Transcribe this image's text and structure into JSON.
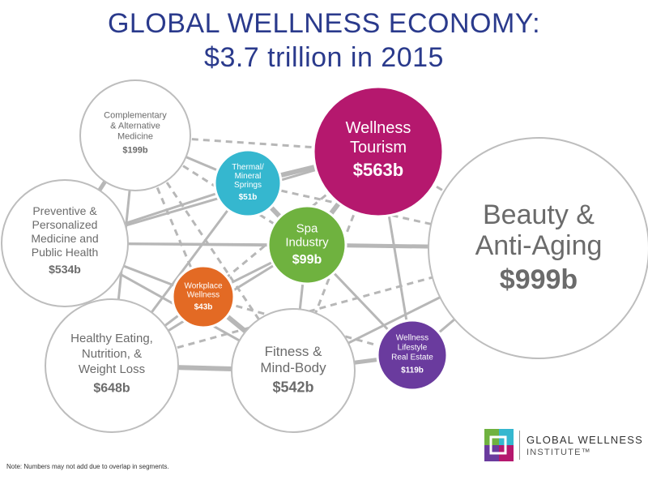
{
  "title": {
    "line1": "GLOBAL WELLNESS ECONOMY:",
    "line2": "$3.7 trillion in 2015"
  },
  "nodes": {
    "cam": {
      "lines": [
        "Complementary",
        "& Alternative",
        "Medicine"
      ],
      "value": "$199b"
    },
    "thermal": {
      "lines": [
        "Thermal/",
        "Mineral",
        "Springs"
      ],
      "value": "$51b"
    },
    "tourism": {
      "lines": [
        "Wellness",
        "Tourism"
      ],
      "value": "$563b"
    },
    "preventive": {
      "lines": [
        "Preventive &",
        "Personalized",
        "Medicine and",
        "Public Health"
      ],
      "value": "$534b"
    },
    "spa": {
      "lines": [
        "Spa",
        "Industry"
      ],
      "value": "$99b"
    },
    "beauty": {
      "lines": [
        "Beauty &",
        "Anti-Aging"
      ],
      "value": "$999b"
    },
    "workplace": {
      "lines": [
        "Workplace",
        "Wellness"
      ],
      "value": "$43b"
    },
    "eating": {
      "lines": [
        "Healthy Eating,",
        "Nutrition, &",
        "Weight Loss"
      ],
      "value": "$648b"
    },
    "fitness": {
      "lines": [
        "Fitness &",
        "Mind-Body"
      ],
      "value": "$542b"
    },
    "realestate": {
      "lines": [
        "Wellness",
        "Lifestyle",
        "Real Estate"
      ],
      "value": "$119b"
    }
  },
  "colors": {
    "title": "#2a3a8c",
    "tourism": "#b5186e",
    "spa": "#6fb23f",
    "thermal": "#35b7cf",
    "workplace": "#e36a24",
    "realestate": "#6a3b9e",
    "outline": "#bdbdbd",
    "link": "#b7b7b7"
  },
  "note": "Note: Numbers may not add due to overlap in segments.",
  "logo": {
    "line1": "GLOBAL WELLNESS",
    "line2": "INSTITUTE™"
  }
}
